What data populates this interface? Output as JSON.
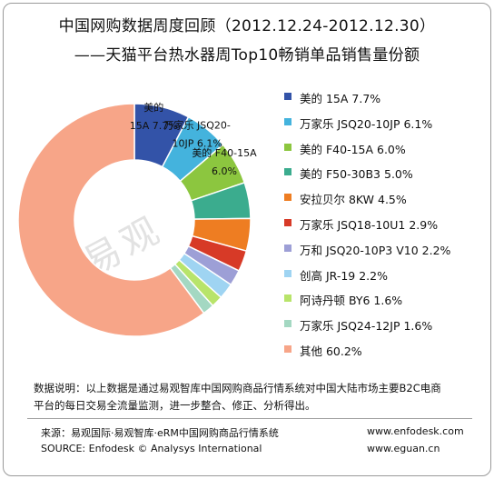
{
  "header": {
    "title_line1": "中国网购数据周度回顾（2012.12.24-2012.12.30）",
    "title_line2": "——天猫平台热水器周Top10畅销单品销售量份额"
  },
  "chart_data": {
    "type": "pie",
    "donut": true,
    "unit": "%",
    "labels": [
      "美的 15A",
      "万家乐 JSQ20-10JP",
      "美的 F40-15A",
      "美的 F50-30B3",
      "安拉贝尔 8KW",
      "万家乐 JSQ18-10U1",
      "万和 JSQ20-10P3 V10",
      "创高 JR-19",
      "阿诗丹顿 BY6",
      "万家乐 JSQ24-12JP",
      "其他"
    ],
    "values": [
      7.7,
      6.1,
      6.0,
      5.0,
      4.5,
      2.9,
      2.2,
      2.2,
      1.6,
      1.6,
      60.2
    ],
    "value_labels": [
      "7.7%",
      "6.1%",
      "6.0%",
      "5.0%",
      "4.5%",
      "2.9%",
      "2.2%",
      "2.2%",
      "1.6%",
      "1.6%",
      "60.2%"
    ],
    "colors": [
      "#3353a8",
      "#44b3dd",
      "#8cc63f",
      "#3bac8e",
      "#ee7d22",
      "#d73a27",
      "#9d9fd6",
      "#9fd4f2",
      "#b8e46a",
      "#a4d8c2",
      "#f7a588"
    ],
    "slice_labels": [
      {
        "index": 0,
        "lines": [
          "美的",
          "15A  7.7%"
        ]
      },
      {
        "index": 1,
        "lines": [
          "万家乐 JSQ20-",
          "10JP  6.1%"
        ]
      },
      {
        "index": 2,
        "lines": [
          "美的 F40-15A",
          "6.0%"
        ]
      }
    ],
    "legend_position": "right"
  },
  "note": {
    "line1": "数据说明：以上数据是通过易观智库中国网购商品行情系统对中国大陆市场主要B2C电商",
    "line2": "平台的每日交易全流量监测，进一步整合、修正、分析得出。"
  },
  "footer": {
    "source_cn": "来源：易观国际·易观智库·eRM中国网购商品行情系统",
    "source_en": "SOURCE: Enfodesk © Analysys International",
    "url1": "www.enfodesk.com",
    "url2": "www.eguan.cn"
  },
  "watermark": "易观"
}
